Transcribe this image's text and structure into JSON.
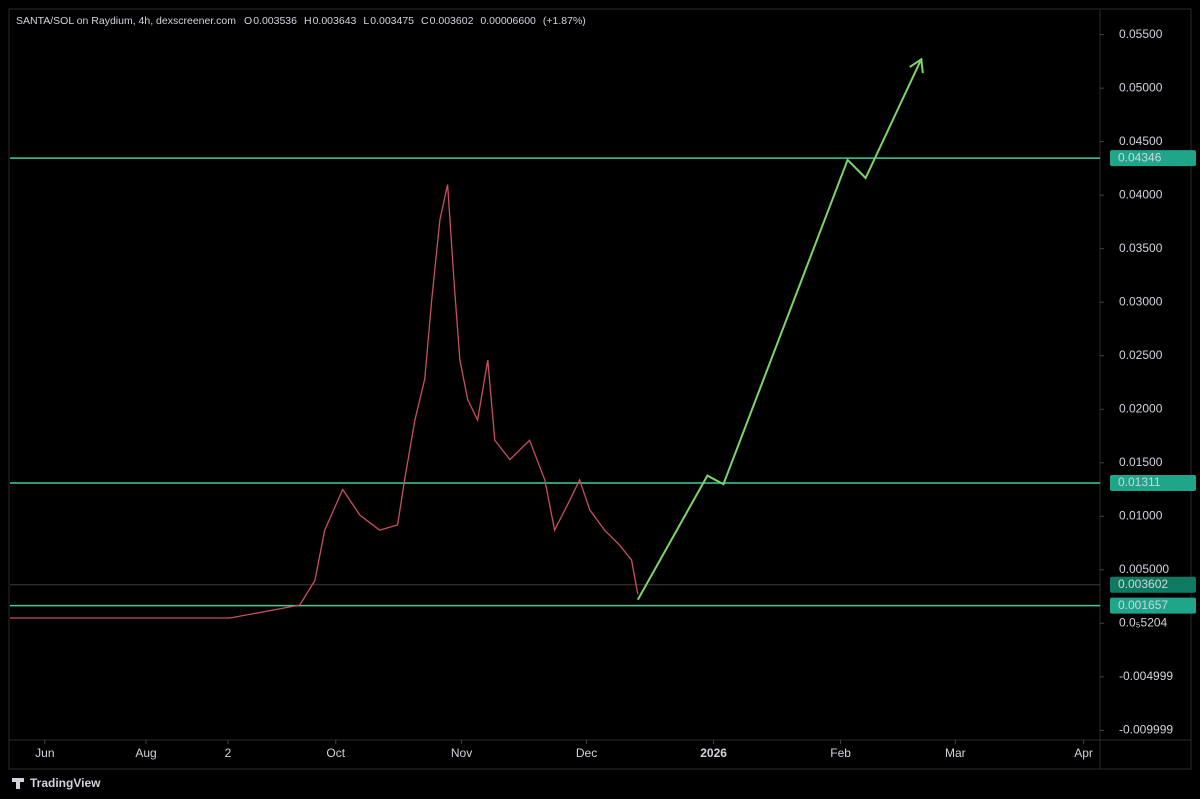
{
  "chart_data": {
    "type": "line",
    "title": "SANTA/SOL on Raydium, 4h, dexscreener.com",
    "ohlc": {
      "open_label": "O",
      "open": 0.003536,
      "high_label": "H",
      "high": 0.003643,
      "low_label": "L",
      "low": 0.003475,
      "close_label": "C",
      "close": 0.003602,
      "change": {
        "value": 6.6e-05,
        "label": "0.00006600"
      },
      "change_pct": {
        "value": 1.87,
        "label": "(+1.87%)"
      }
    },
    "x": [
      0,
      53.7,
      70.7,
      74.4,
      76.8,
      81.2,
      85.4,
      90.2,
      94.6,
      96.3,
      98.8,
      101.2,
      102.9,
      104.9,
      106.8,
      108.5,
      109.8,
      111.7,
      114.1,
      116.6,
      118.3,
      122,
      126.8,
      130.5,
      132.9,
      136.6,
      139,
      141.5,
      145.1,
      148.8,
      151.7,
      153.2
    ],
    "series": [
      {
        "color": "#c8505e",
        "values": [
          0.0005,
          0.0005,
          0.0017,
          0.004,
          0.0087,
          0.0125,
          0.0101,
          0.0087,
          0.0092,
          0.0134,
          0.019,
          0.0228,
          0.0302,
          0.0377,
          0.041,
          0.0312,
          0.0246,
          0.0209,
          0.019,
          0.0246,
          0.0171,
          0.0153,
          0.0171,
          0.0134,
          0.0087,
          0.0115,
          0.0134,
          0.0106,
          0.0087,
          0.0073,
          0.0059,
          0.0027
        ]
      }
    ],
    "projection": {
      "color": "#7ed46b",
      "x": [
        153.2,
        170.2,
        174.1,
        204.4,
        208.8,
        222.4
      ],
      "values": [
        0.0022,
        0.0138,
        0.013,
        0.0433,
        0.0416,
        0.0527
      ]
    },
    "levels": {
      "color": "#3ccf9a",
      "values": [
        0.04346,
        0.01311,
        0.001657
      ]
    },
    "last_price": 0.003602,
    "xlim": [
      0,
      266
    ],
    "xticks": [
      {
        "value": 8.5,
        "label": "Jun"
      },
      {
        "value": 33.2,
        "label": "Aug"
      },
      {
        "value": 53.2,
        "label": "2"
      },
      {
        "value": 79.5,
        "label": "Oct"
      },
      {
        "value": 110.2,
        "label": "Nov"
      },
      {
        "value": 140.7,
        "label": "Dec"
      },
      {
        "value": 171.7,
        "label": "2026"
      },
      {
        "value": 202.7,
        "label": "Feb"
      },
      {
        "value": 230.7,
        "label": "Mar"
      },
      {
        "value": 262,
        "label": "Apr"
      }
    ],
    "ylim": [
      -0.0109,
      0.0573
    ],
    "yticks": [
      {
        "value": 0.055,
        "label": "0.05500"
      },
      {
        "value": 0.05,
        "label": "0.05000"
      },
      {
        "value": 0.045,
        "label": "0.04500"
      },
      {
        "value": 0.04,
        "label": "0.04000"
      },
      {
        "value": 0.035,
        "label": "0.03500"
      },
      {
        "value": 0.03,
        "label": "0.03000"
      },
      {
        "value": 0.025,
        "label": "0.02500"
      },
      {
        "value": 0.02,
        "label": "0.02000"
      },
      {
        "value": 0.015,
        "label": "0.01500"
      },
      {
        "value": 0.01,
        "label": "0.01000"
      },
      {
        "value": 0.005,
        "label": "0.005000"
      },
      {
        "value": 5.204e-06,
        "label": "0.0₅5204"
      },
      -0.004999,
      -0.009999
    ],
    "brand": "TradingView"
  }
}
